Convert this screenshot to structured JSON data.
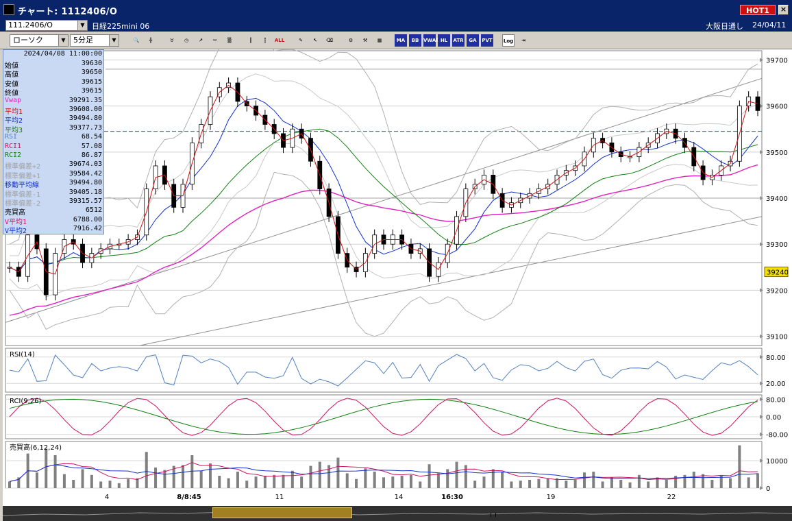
{
  "window": {
    "title": "チャート: 1112406/O",
    "hot_label": "HOT1",
    "close_label": "×"
  },
  "infobar": {
    "symbol_code": "111.2406/O",
    "symbol_name": "日経225mini 06",
    "market": "大阪日通し",
    "date": "24/04/11"
  },
  "toolbar": {
    "chart_type": "ローソク",
    "interval": "5分足",
    "icons": [
      "search-icon",
      "crosshair-icon",
      "bull-icon",
      "clock-icon",
      "chart-up-icon",
      "scissors-icon",
      "gray-icon",
      "candle-icon",
      "candle2-icon",
      "all-button",
      "pencil-icon",
      "cursor-icon",
      "eraser-icon",
      "gear-icon",
      "wrench-icon",
      "palette-icon"
    ],
    "indicator_buttons": [
      "MA",
      "BB",
      "VWAP",
      "HL",
      "ATR",
      "GA",
      "PVT"
    ],
    "log_label": "Log"
  },
  "info_panel": {
    "datetime": "2024/04/08  11:00:00",
    "rows": [
      {
        "label": "始値",
        "value": "39630",
        "color": "#000000"
      },
      {
        "label": "高値",
        "value": "39650",
        "color": "#000000"
      },
      {
        "label": "安値",
        "value": "39615",
        "color": "#000000"
      },
      {
        "label": "終値",
        "value": "39615",
        "color": "#000000"
      },
      {
        "label": "Vwap",
        "value": "39291.35",
        "color": "#e020c0"
      },
      {
        "label": "平均1",
        "value": "39608.00",
        "color": "#d01010"
      },
      {
        "label": "平均2",
        "value": "39494.80",
        "color": "#1030d0"
      },
      {
        "label": "平均3",
        "value": "39377.73",
        "color": "#108010"
      },
      {
        "label": "RSI",
        "value": "68.54",
        "color": "#5080c0"
      },
      {
        "label": "RCI1",
        "value": "57.08",
        "color": "#d01060"
      },
      {
        "label": "RCI2",
        "value": "86.87",
        "color": "#108010"
      },
      {
        "label": "標準偏差+2",
        "value": "39674.03",
        "color": "#a0a0a0"
      },
      {
        "label": "標準偏差+1",
        "value": "39584.42",
        "color": "#a0a0a0"
      },
      {
        "label": "移動平均線",
        "value": "39494.80",
        "color": "#1030d0"
      },
      {
        "label": "標準偏差-1",
        "value": "39405.18",
        "color": "#a0a0a0"
      },
      {
        "label": "標準偏差-2",
        "value": "39315.57",
        "color": "#a0a0a0"
      },
      {
        "label": "売買高",
        "value": "6512",
        "color": "#000000"
      },
      {
        "label": "V平均1",
        "value": "6788.00",
        "color": "#d01060"
      },
      {
        "label": "V平均2",
        "value": "7916.42",
        "color": "#1030d0"
      }
    ]
  },
  "panels": {
    "rsi_label": "RSI(14)",
    "rci_label": "RCI(9,26)",
    "vol_label": "売買高(6,12,24)"
  },
  "chart_data": {
    "type": "line",
    "price_axis": {
      "ticks": [
        "39700",
        "39600",
        "39500",
        "39400",
        "39300",
        "39200",
        "39100"
      ],
      "ylim": [
        39080,
        39720
      ],
      "current_price": "39240"
    },
    "rsi_axis": {
      "ticks": [
        "80.00",
        "20.00"
      ],
      "ylim": [
        0,
        100
      ]
    },
    "rci_axis": {
      "ticks": [
        "80.00",
        "0.00",
        "-80.00"
      ],
      "ylim": [
        -100,
        100
      ]
    },
    "volume_axis": {
      "ticks": [
        "10000",
        "0"
      ],
      "ylim": [
        0,
        17000
      ]
    },
    "x_tick_labels": [
      "4",
      "8/8:45",
      "11",
      "14",
      "16:30",
      "19",
      "22"
    ],
    "close": [
      39250,
      39230,
      39320,
      39290,
      39190,
      39280,
      39310,
      39300,
      39260,
      39280,
      39290,
      39300,
      39300,
      39310,
      39320,
      39420,
      39470,
      39430,
      39380,
      39430,
      39520,
      39560,
      39620,
      39640,
      39650,
      39610,
      39600,
      39580,
      39560,
      39540,
      39510,
      39550,
      39530,
      39480,
      39420,
      39360,
      39280,
      39250,
      39240,
      39280,
      39320,
      39300,
      39320,
      39300,
      39280,
      39290,
      39230,
      39260,
      39300,
      39360,
      39420,
      39430,
      39450,
      39410,
      39380,
      39390,
      39400,
      39410,
      39420,
      39430,
      39450,
      39460,
      39470,
      39500,
      39530,
      39520,
      39500,
      39490,
      39490,
      39510,
      39520,
      39540,
      39550,
      39530,
      39510,
      39470,
      39440,
      39450,
      39470,
      39480,
      39600,
      39620,
      39590
    ],
    "series": [
      {
        "name": "平均1",
        "color": "#d01010"
      },
      {
        "name": "平均2",
        "color": "#1030d0"
      },
      {
        "name": "平均3",
        "color": "#108010"
      },
      {
        "name": "Vwap",
        "color": "#e020c0"
      }
    ]
  }
}
